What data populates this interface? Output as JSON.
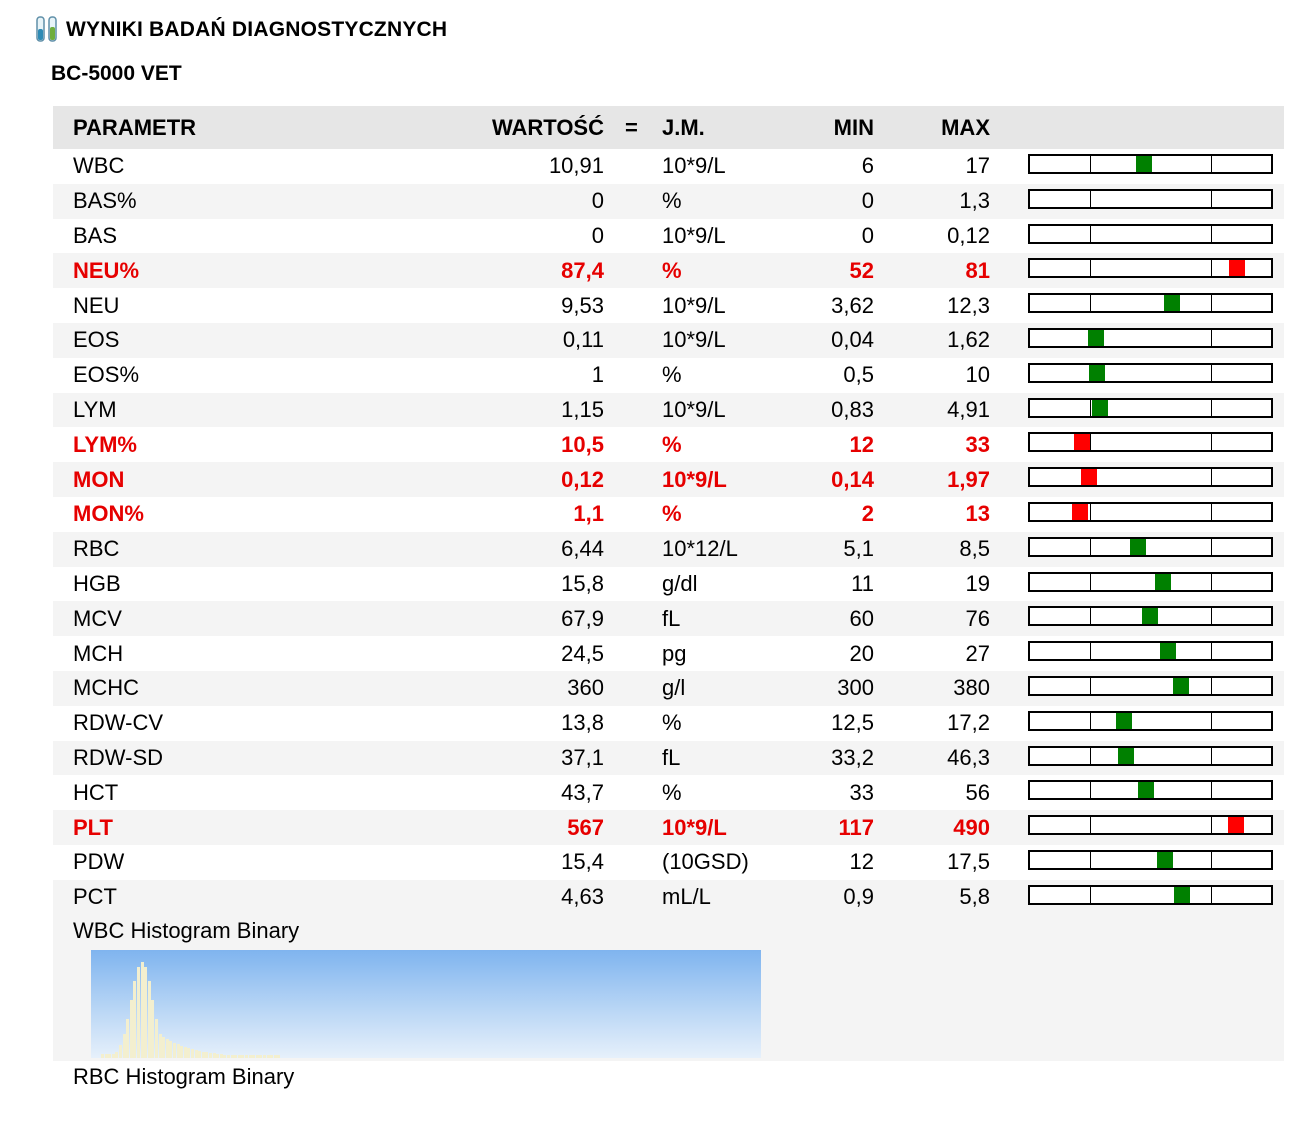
{
  "header": {
    "title": "WYNIKI BADAŃ DIAGNOSTYCZNYCH",
    "title_icon": "test-tubes-icon",
    "device": "BC-5000 VET"
  },
  "table": {
    "columns": {
      "param": "PARAMETR",
      "value": "WARTOŚĆ",
      "eq": "=",
      "unit": "J.M.",
      "min": "MIN",
      "max": "MAX"
    },
    "rows": [
      {
        "param": "WBC",
        "value": "10,91",
        "unit": "10*9/L",
        "min": "6",
        "max": "17",
        "abnormal": false
      },
      {
        "param": "BAS%",
        "value": "0",
        "unit": "%",
        "min": "0",
        "max": "1,3",
        "abnormal": false
      },
      {
        "param": "BAS",
        "value": "0",
        "unit": "10*9/L",
        "min": "0",
        "max": "0,12",
        "abnormal": false
      },
      {
        "param": "NEU%",
        "value": "87,4",
        "unit": "%",
        "min": "52",
        "max": "81",
        "abnormal": true
      },
      {
        "param": "NEU",
        "value": "9,53",
        "unit": "10*9/L",
        "min": "3,62",
        "max": "12,3",
        "abnormal": false
      },
      {
        "param": "EOS",
        "value": "0,11",
        "unit": "10*9/L",
        "min": "0,04",
        "max": "1,62",
        "abnormal": false
      },
      {
        "param": "EOS%",
        "value": "1",
        "unit": "%",
        "min": "0,5",
        "max": "10",
        "abnormal": false
      },
      {
        "param": "LYM",
        "value": "1,15",
        "unit": "10*9/L",
        "min": "0,83",
        "max": "4,91",
        "abnormal": false
      },
      {
        "param": "LYM%",
        "value": "10,5",
        "unit": "%",
        "min": "12",
        "max": "33",
        "abnormal": true
      },
      {
        "param": "MON",
        "value": "0,12",
        "unit": "10*9/L",
        "min": "0,14",
        "max": "1,97",
        "abnormal": true
      },
      {
        "param": "MON%",
        "value": "1,1",
        "unit": "%",
        "min": "2",
        "max": "13",
        "abnormal": true
      },
      {
        "param": "RBC",
        "value": "6,44",
        "unit": "10*12/L",
        "min": "5,1",
        "max": "8,5",
        "abnormal": false
      },
      {
        "param": "HGB",
        "value": "15,8",
        "unit": "g/dl",
        "min": "11",
        "max": "19",
        "abnormal": false
      },
      {
        "param": "MCV",
        "value": "67,9",
        "unit": "fL",
        "min": "60",
        "max": "76",
        "abnormal": false
      },
      {
        "param": "MCH",
        "value": "24,5",
        "unit": "pg",
        "min": "20",
        "max": "27",
        "abnormal": false
      },
      {
        "param": "MCHC",
        "value": "360",
        "unit": "g/l",
        "min": "300",
        "max": "380",
        "abnormal": false
      },
      {
        "param": "RDW-CV",
        "value": "13,8",
        "unit": "%",
        "min": "12,5",
        "max": "17,2",
        "abnormal": false
      },
      {
        "param": "RDW-SD",
        "value": "37,1",
        "unit": "fL",
        "min": "33,2",
        "max": "46,3",
        "abnormal": false
      },
      {
        "param": "HCT",
        "value": "43,7",
        "unit": "%",
        "min": "33",
        "max": "56",
        "abnormal": false
      },
      {
        "param": "PLT",
        "value": "567",
        "unit": "10*9/L",
        "min": "117",
        "max": "490",
        "abnormal": true
      },
      {
        "param": "PDW",
        "value": "15,4",
        "unit": "(10GSD)",
        "min": "12",
        "max": "17,5",
        "abnormal": false
      },
      {
        "param": "PCT",
        "value": "4,63",
        "unit": "mL/L",
        "min": "0,9",
        "max": "5,8",
        "abnormal": false
      }
    ]
  },
  "colors": {
    "normal_marker": "#008000",
    "abnormal_marker": "#ff0000",
    "abnormal_text": "#e60000"
  },
  "histograms": {
    "wbc_label": "WBC Histogram Binary",
    "rbc_label": "RBC Histogram Binary"
  }
}
